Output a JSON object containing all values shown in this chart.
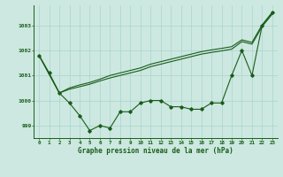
{
  "title": "Graphe pression niveau de la mer (hPa)",
  "bg_color": "#cce8e0",
  "line_color": "#1a5c1a",
  "grid_color": "#aad4cc",
  "xlim": [
    -0.5,
    23.5
  ],
  "ylim": [
    998.5,
    1003.8
  ],
  "yticks": [
    999,
    1000,
    1001,
    1002,
    1003
  ],
  "xticks": [
    0,
    1,
    2,
    3,
    4,
    5,
    6,
    7,
    8,
    9,
    10,
    11,
    12,
    13,
    14,
    15,
    16,
    17,
    18,
    19,
    20,
    21,
    22,
    23
  ],
  "series1": [
    1001.8,
    1001.1,
    1000.3,
    999.9,
    999.4,
    998.8,
    999.0,
    998.9,
    999.55,
    999.55,
    999.9,
    1000.0,
    1000.0,
    999.75,
    999.75,
    999.65,
    999.65,
    999.9,
    999.9,
    1001.0,
    1002.0,
    1001.0,
    1003.0,
    1003.5
  ],
  "series2": [
    1001.8,
    1001.05,
    1000.3,
    1000.45,
    1000.55,
    1000.65,
    1000.78,
    1000.9,
    1001.0,
    1001.1,
    1001.2,
    1001.35,
    1001.45,
    1001.55,
    1001.65,
    1001.75,
    1001.85,
    1001.92,
    1001.98,
    1002.05,
    1002.35,
    1002.25,
    1002.95,
    1003.45
  ],
  "series3": [
    1001.8,
    1001.05,
    1000.3,
    1000.5,
    1000.62,
    1000.72,
    1000.85,
    1001.0,
    1001.1,
    1001.2,
    1001.3,
    1001.45,
    1001.55,
    1001.65,
    1001.75,
    1001.85,
    1001.95,
    1002.02,
    1002.08,
    1002.15,
    1002.42,
    1002.32,
    1003.02,
    1003.52
  ]
}
